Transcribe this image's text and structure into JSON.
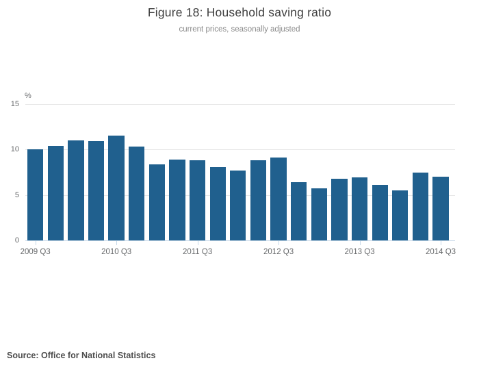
{
  "header": {
    "title": "Figure 18: Household saving ratio",
    "subtitle": "current prices, seasonally adjusted"
  },
  "footer": {
    "source": "Source: Office for National Statistics"
  },
  "chart_data": {
    "type": "bar",
    "title": "Figure 18: Household saving ratio",
    "subtitle": "current prices, seasonally adjusted",
    "xlabel": "",
    "ylabel": "%",
    "ylim": [
      0,
      15
    ],
    "y_ticks": [
      0,
      5,
      10,
      15
    ],
    "grid": true,
    "legend": "none",
    "categories": [
      "2009 Q3",
      "2009 Q4",
      "2010 Q1",
      "2010 Q2",
      "2010 Q3",
      "2010 Q4",
      "2011 Q1",
      "2011 Q2",
      "2011 Q3",
      "2011 Q4",
      "2012 Q1",
      "2012 Q2",
      "2012 Q3",
      "2012 Q4",
      "2013 Q1",
      "2013 Q2",
      "2013 Q3",
      "2013 Q4",
      "2014 Q1",
      "2014 Q2",
      "2014 Q3"
    ],
    "values": [
      10.0,
      10.4,
      11.0,
      10.9,
      11.5,
      10.3,
      8.4,
      8.9,
      8.8,
      8.1,
      7.7,
      8.8,
      9.1,
      6.4,
      5.7,
      6.8,
      6.9,
      6.1,
      5.5,
      7.5,
      7.0
    ],
    "x_tick_labels": [
      "2009 Q3",
      "2010 Q3",
      "2011 Q3",
      "2012 Q3",
      "2013 Q3",
      "2014 Q3"
    ],
    "x_tick_indices": [
      0,
      4,
      8,
      12,
      16,
      20
    ],
    "colors": {
      "bar": "#20608E",
      "gridline": "#e7e7e7",
      "axis_line": "#c6d8e8",
      "title": "#3e3e3e",
      "subtitle": "#8a8a8a",
      "tick_label": "#67696b",
      "source": "#4d4d4d",
      "background": "#ffffff"
    }
  }
}
